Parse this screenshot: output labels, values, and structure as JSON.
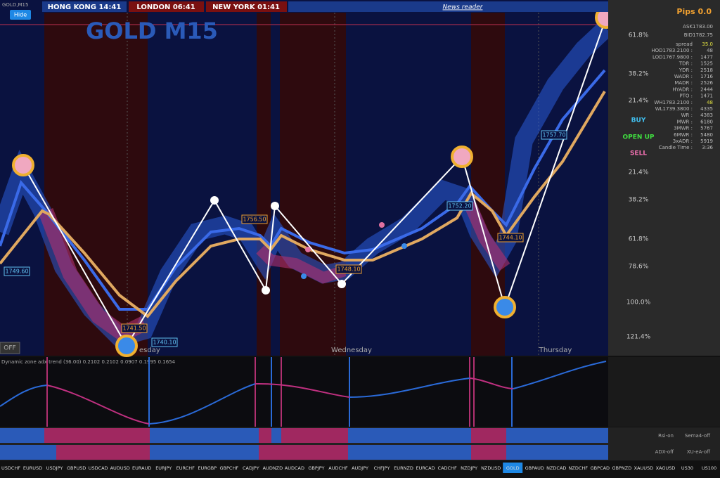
{
  "header": {
    "symbol": "GOLD,M15",
    "hide_button": "Hide",
    "clocks": [
      "HONG KONG 14:41",
      "LONDON 06:41",
      "NEW YORK 01:41"
    ],
    "news": "News reader",
    "pips": "Pips 0.0"
  },
  "chart": {
    "title": "GOLD M15",
    "fib_labels": [
      "61.8%",
      "38.2%",
      "21.4%",
      "21.4%",
      "38.2%",
      "61.8%",
      "78.6%",
      "100.0%",
      "121.4%"
    ],
    "price_labels": [
      "1749.60",
      "1756.50",
      "1741.50",
      "1740.10",
      "1752.20",
      "1748.10",
      "1744.10",
      "1757.70"
    ],
    "days": [
      "esday",
      "Wednesday",
      "Thursday"
    ],
    "off_button": "OFF"
  },
  "info_panel": {
    "rows": [
      {
        "label": "ASK",
        "value": "1783.00"
      },
      {
        "label": "BID",
        "value": "1782.75"
      },
      {
        "label": "spread",
        "value": "35.0"
      },
      {
        "label": "HOD1783.2100 :",
        "value": "48"
      },
      {
        "label": "LOD1767.9800 :",
        "value": "1477"
      },
      {
        "label": "TDR :",
        "value": "1525"
      },
      {
        "label": "YDR :",
        "value": "2518"
      },
      {
        "label": "WADR :",
        "value": "1716"
      },
      {
        "label": "MADR :",
        "value": "2526"
      },
      {
        "label": "HYADR :",
        "value": "2444"
      },
      {
        "label": "PTO :",
        "value": "1471"
      },
      {
        "label": "WH1783.2100 :",
        "value": "48"
      },
      {
        "label": "WL1739.3800 :",
        "value": "4335"
      },
      {
        "label": "WR :",
        "value": "4383"
      },
      {
        "label": "MWR :",
        "value": "6180"
      },
      {
        "label": "3MWR :",
        "value": "5767"
      },
      {
        "label": "6MWR :",
        "value": "5480"
      },
      {
        "label": "3xADR :",
        "value": "5919"
      },
      {
        "label": "Candle Time :",
        "value": "3:36"
      }
    ],
    "buy": "BUY",
    "open": "OPEN UP",
    "sell": "SELL"
  },
  "indicator": {
    "label": "Dynamic zone adx trend (36.00) 0.2102 0.2102 0.0907 0.1995 0.1654",
    "toggles": [
      "Rsi-on",
      "Sema4-off",
      "ADX-off",
      "XU-eA-off"
    ]
  },
  "symbols": [
    "USDCHF",
    "EURUSD",
    "USDJPY",
    "GBPUSD",
    "USDCAD",
    "AUDUSD",
    "EURAUD",
    "EURJPY",
    "EURCHF",
    "EURGBP",
    "GBPCHF",
    "CADJPY",
    "AUDNZD",
    "AUDCAD",
    "GBPJPY",
    "AUDCHF",
    "AUDJPY",
    "CHFJPY",
    "EURNZD",
    "EURCAD",
    "CADCHF",
    "NZDJPY",
    "NZDUSD",
    "GOLD",
    "GBPAUD",
    "NZDCAD",
    "NZDCHF",
    "GBPCAD",
    "GBPNZD",
    "XAUUSD",
    "XAGUSD",
    "US30",
    "US100"
  ],
  "active_symbol": 23
}
